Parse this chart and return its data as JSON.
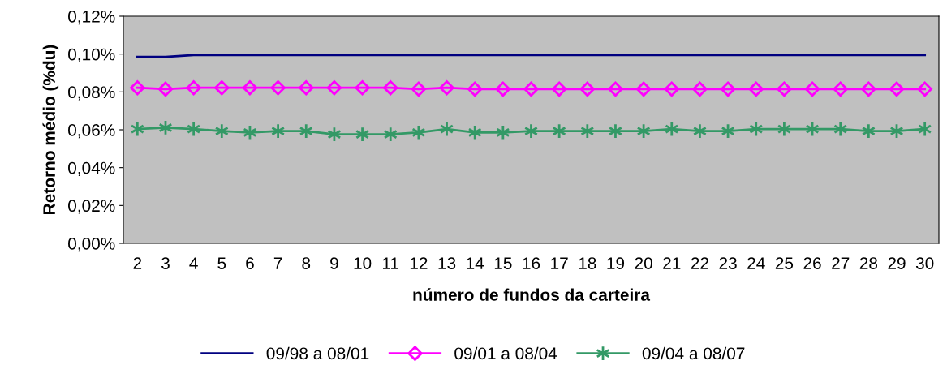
{
  "chart_data": {
    "type": "line",
    "xlabel": "número de fundos da carteira",
    "ylabel": "Retorno médio (%du)",
    "categories": [
      "2",
      "3",
      "4",
      "5",
      "6",
      "7",
      "8",
      "9",
      "10",
      "11",
      "12",
      "13",
      "14",
      "15",
      "16",
      "17",
      "18",
      "19",
      "20",
      "21",
      "22",
      "23",
      "24",
      "25",
      "26",
      "27",
      "28",
      "29",
      "30"
    ],
    "series": [
      {
        "name": "09/98 a 08/01",
        "color": "#000080",
        "marker": "none",
        "values": [
          0.0985,
          0.0985,
          0.0995,
          0.0995,
          0.0995,
          0.0995,
          0.0995,
          0.0995,
          0.0995,
          0.0995,
          0.0995,
          0.0995,
          0.0995,
          0.0995,
          0.0995,
          0.0995,
          0.0995,
          0.0995,
          0.0995,
          0.0995,
          0.0995,
          0.0995,
          0.0995,
          0.0995,
          0.0995,
          0.0995,
          0.0995,
          0.0995,
          0.0995
        ]
      },
      {
        "name": "09/01 a 08/04",
        "color": "#ff00ff",
        "marker": "diamond",
        "values": [
          0.0822,
          0.0815,
          0.0822,
          0.0822,
          0.0822,
          0.0822,
          0.0822,
          0.0822,
          0.0822,
          0.0822,
          0.0815,
          0.0822,
          0.0815,
          0.0815,
          0.0815,
          0.0815,
          0.0815,
          0.0815,
          0.0815,
          0.0815,
          0.0815,
          0.0815,
          0.0815,
          0.0815,
          0.0815,
          0.0815,
          0.0815,
          0.0815,
          0.0815
        ]
      },
      {
        "name": "09/04 a 08/07",
        "color": "#339966",
        "marker": "cross",
        "values": [
          0.0604,
          0.0611,
          0.0604,
          0.0593,
          0.0586,
          0.0593,
          0.0593,
          0.0576,
          0.0576,
          0.0576,
          0.0586,
          0.0604,
          0.0586,
          0.0586,
          0.0593,
          0.0593,
          0.0593,
          0.0593,
          0.0593,
          0.0604,
          0.0593,
          0.0593,
          0.0604,
          0.0604,
          0.0604,
          0.0604,
          0.0593,
          0.0593,
          0.0604
        ]
      }
    ],
    "ylim": [
      0,
      0.12
    ],
    "yticks": [
      {
        "value": 0,
        "label": "0,00%"
      },
      {
        "value": 0.02,
        "label": "0,02%"
      },
      {
        "value": 0.04,
        "label": "0,04%"
      },
      {
        "value": 0.06,
        "label": "0,06%"
      },
      {
        "value": 0.08,
        "label": "0,08%"
      },
      {
        "value": 0.1,
        "label": "0,10%"
      },
      {
        "value": 0.12,
        "label": "0,12%"
      }
    ],
    "grid": false,
    "legend": "bottom"
  }
}
